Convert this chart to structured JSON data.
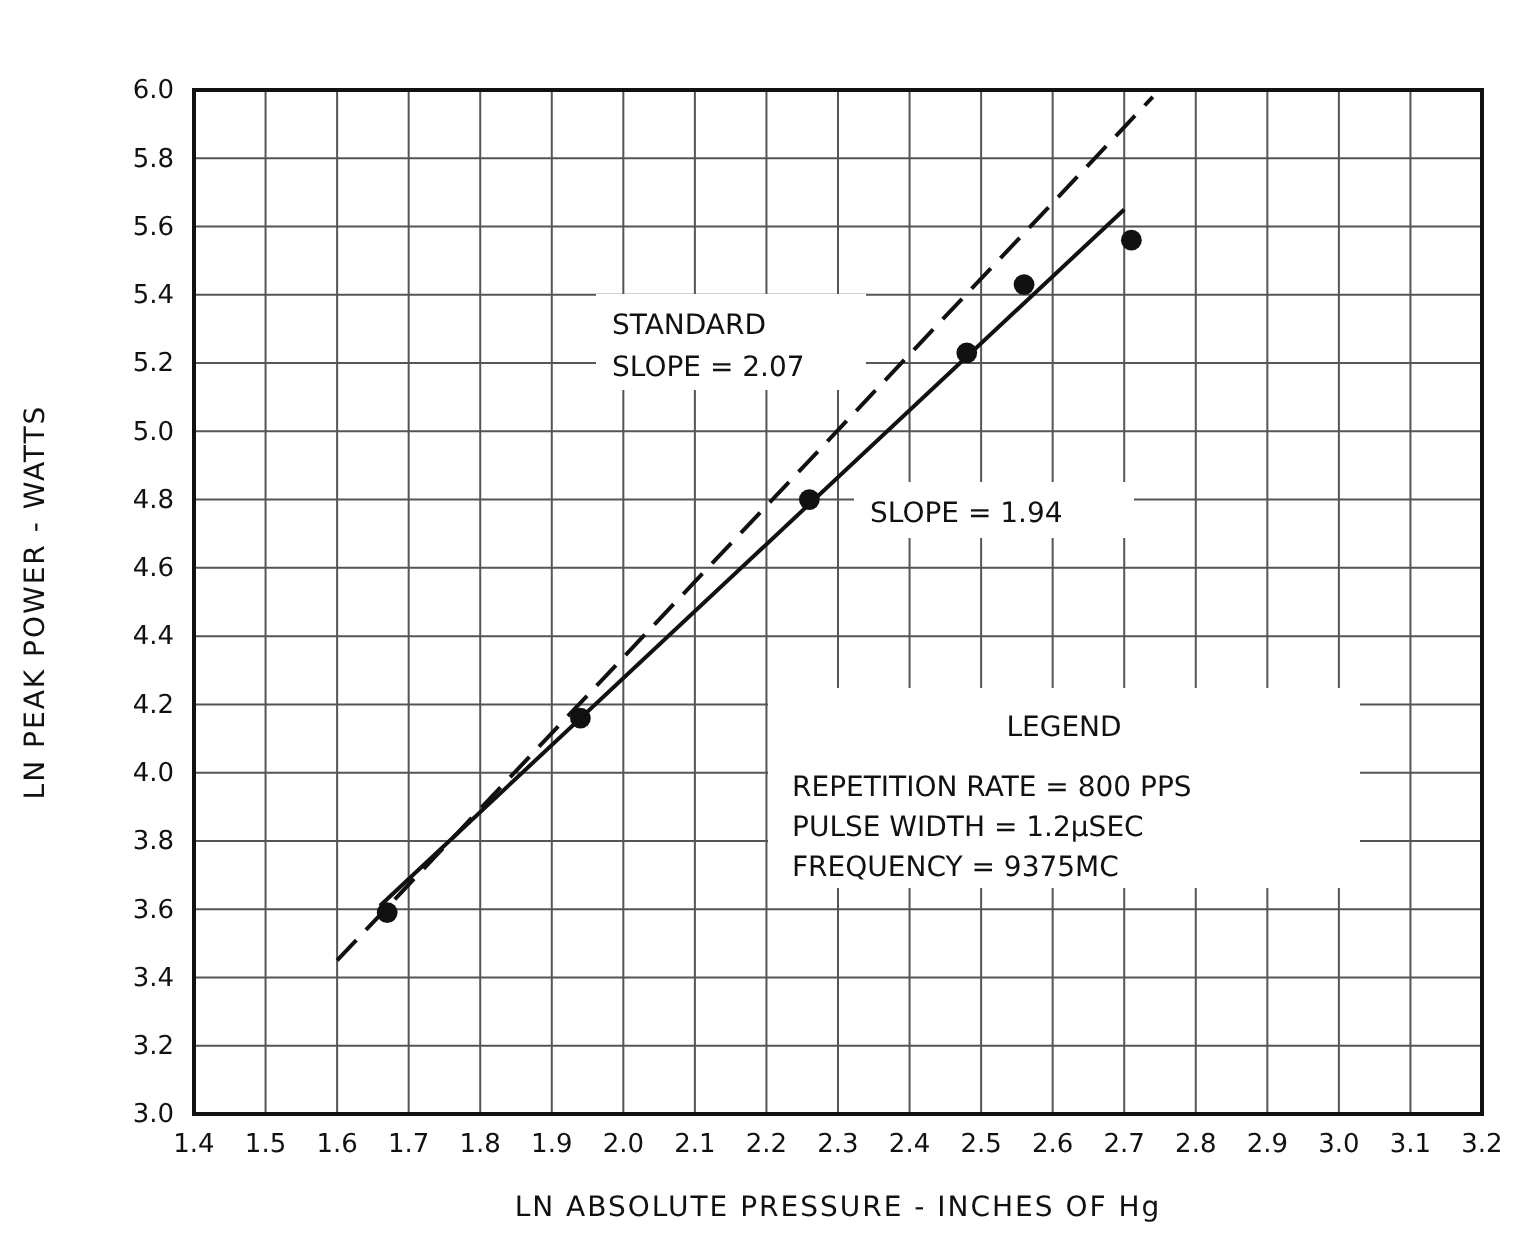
{
  "chart_data": {
    "type": "scatter",
    "xlabel": "LN ABSOLUTE PRESSURE - INCHES OF Hg",
    "ylabel": "LN PEAK POWER - WATTS",
    "xlim": [
      1.4,
      3.2
    ],
    "ylim": [
      3.0,
      6.0
    ],
    "xticks": [
      1.4,
      1.5,
      1.6,
      1.7,
      1.8,
      1.9,
      {
        "value": 2,
        "label": "2.0"
      },
      2.1,
      2.2,
      2.3,
      2.4,
      2.5,
      2.6,
      2.7,
      2.8,
      2.9,
      {
        "value": 3,
        "label": "3.0"
      },
      3.1,
      3.2
    ],
    "yticks": [
      {
        "value": 3,
        "label": "3.0"
      },
      3.2,
      3.4,
      3.6,
      3.8,
      {
        "value": 4,
        "label": "4.0"
      },
      4.2,
      4.4,
      4.6,
      4.8,
      {
        "value": 5,
        "label": "5.0"
      },
      5.2,
      5.4,
      5.6,
      5.8,
      {
        "value": 6,
        "label": "6.0"
      }
    ],
    "grid": true,
    "marker": "circle",
    "series": [
      {
        "color": "#111111",
        "x": [
          1.67,
          1.94,
          2.26,
          2.48,
          2.56,
          2.71
        ],
        "values": [
          3.59,
          4.16,
          4.8,
          5.23,
          5.43,
          5.56
        ]
      },
      {
        "type": "line",
        "color": "#111111",
        "line_style": "solid",
        "marker": "none",
        "x": [
          1.66,
          2.7
        ],
        "values": [
          3.61,
          5.65
        ]
      },
      {
        "type": "line",
        "color": "#111111",
        "line_style": "dashed",
        "marker": "none",
        "x": [
          1.6,
          2.74
        ],
        "values": [
          3.45,
          5.98
        ]
      }
    ],
    "annotations": [
      "STANDARD",
      "SLOPE = 2.07",
      "SLOPE = 1.94",
      "LEGEND",
      "REPETITION RATE = 800 PPS",
      "PULSE WIDTH = 1.2μSEC",
      "FREQUENCY = 9375MC"
    ]
  }
}
